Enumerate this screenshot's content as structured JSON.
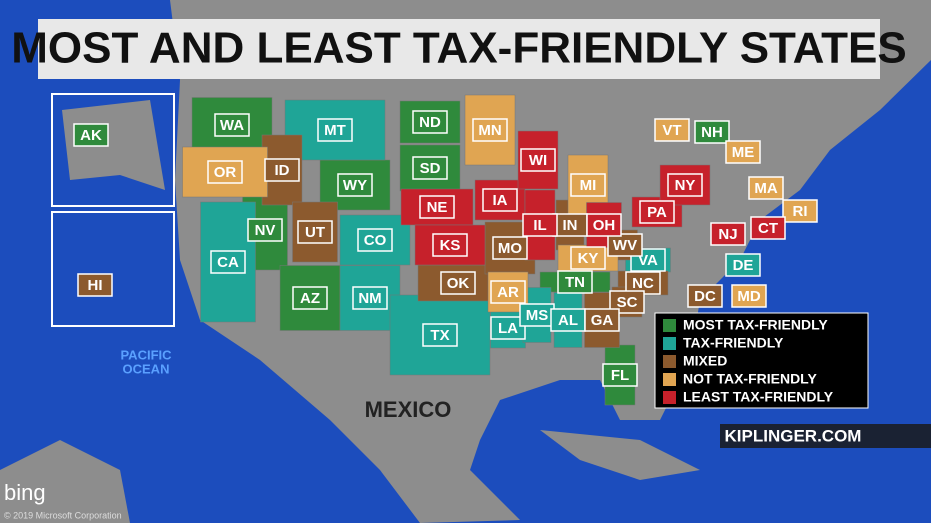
{
  "title": "MOST AND LEAST TAX-FRIENDLY STATES",
  "legend": [
    {
      "label": "MOST TAX-FRIENDLY",
      "color": "#2f8a3c",
      "states": [
        "WA",
        "ND",
        "SD",
        "WY",
        "NV",
        "AZ",
        "TN",
        "FL",
        "NH",
        "AK"
      ]
    },
    {
      "label": "TAX-FRIENDLY",
      "color": "#1fa597",
      "states": [
        "MT",
        "CO",
        "CA",
        "NM",
        "TX",
        "LA",
        "MS",
        "AL",
        "VA",
        "DE"
      ]
    },
    {
      "label": "MIXED",
      "color": "#8c5a2e",
      "states": [
        "ID",
        "UT",
        "OK",
        "MO",
        "IN",
        "WV",
        "NC",
        "SC",
        "GA",
        "DC",
        "HI"
      ]
    },
    {
      "label": "NOT TAX-FRIENDLY",
      "color": "#e0a552",
      "states": [
        "OR",
        "MN",
        "AR",
        "MI",
        "KY",
        "VT",
        "ME",
        "MA",
        "RI",
        "MD"
      ]
    },
    {
      "label": "LEAST TAX-FRIENDLY",
      "color": "#c6212b",
      "states": [
        "NE",
        "KS",
        "IA",
        "WI",
        "IL",
        "OH",
        "PA",
        "NY",
        "NJ",
        "CT"
      ]
    }
  ],
  "ocean_label": [
    "PACIFIC",
    "OCEAN"
  ],
  "country_label": "MEXICO",
  "source": "KIPLINGER.COM",
  "map_brand": "bing",
  "copyright": "© 2019 Microsoft Corporation"
}
